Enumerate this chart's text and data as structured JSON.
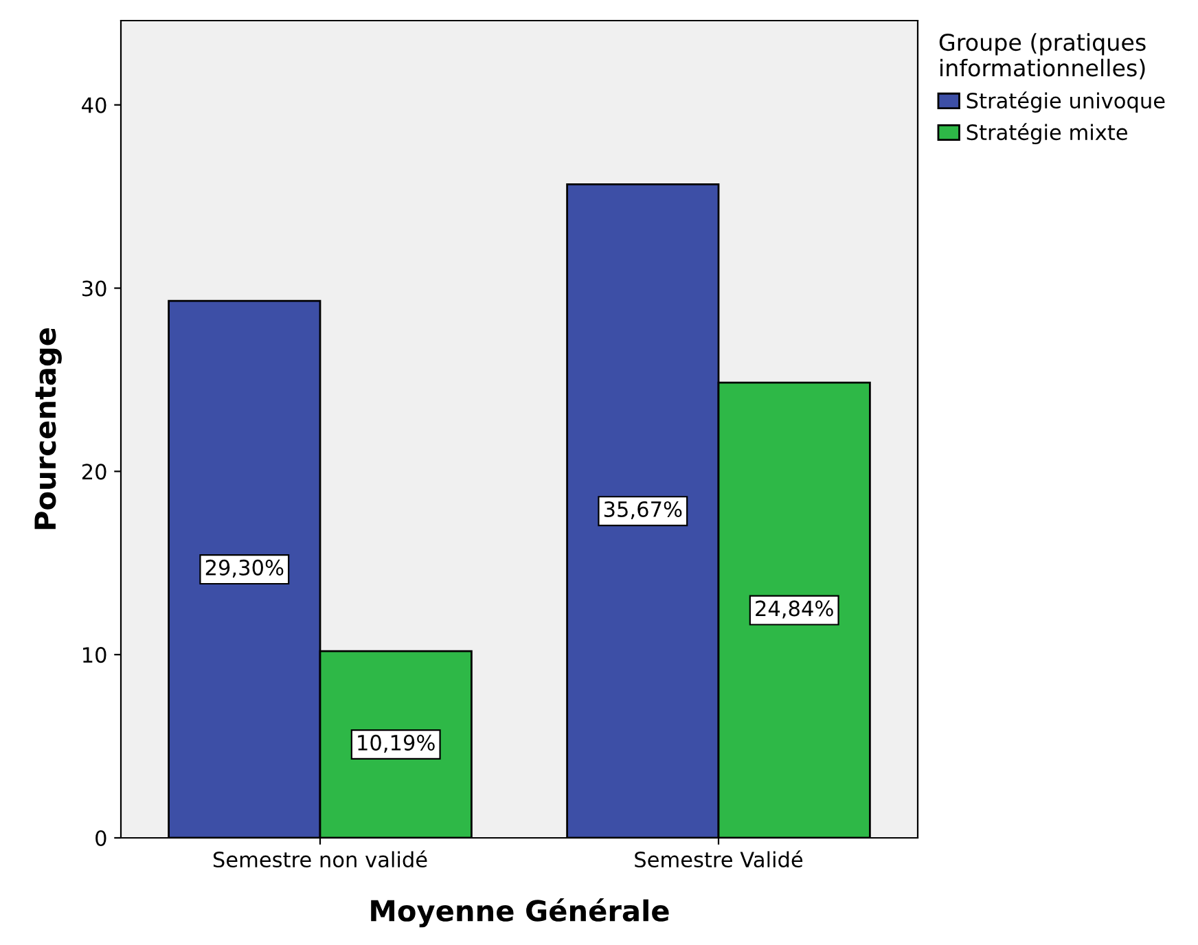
{
  "chart_data": {
    "type": "bar",
    "xlabel": "Moyenne Générale",
    "ylabel": "Pourcentage",
    "legend_title": "Groupe (pratiques\ninformationnelles)",
    "categories": [
      "Semestre non validé",
      "Semestre Validé"
    ],
    "series": [
      {
        "name": "Stratégie univoque",
        "color": "#3d4fa6",
        "values": [
          29.3,
          35.67
        ],
        "value_labels": [
          "29,30%",
          "35,67%"
        ]
      },
      {
        "name": "Stratégie mixte",
        "color": "#2eb847",
        "values": [
          10.19,
          24.84
        ],
        "value_labels": [
          "10,19%",
          "24,84%"
        ]
      }
    ],
    "ylim": [
      0,
      44.6
    ],
    "yticks": [
      0,
      10,
      20,
      30,
      40
    ],
    "grid": false,
    "legend": "top right"
  }
}
